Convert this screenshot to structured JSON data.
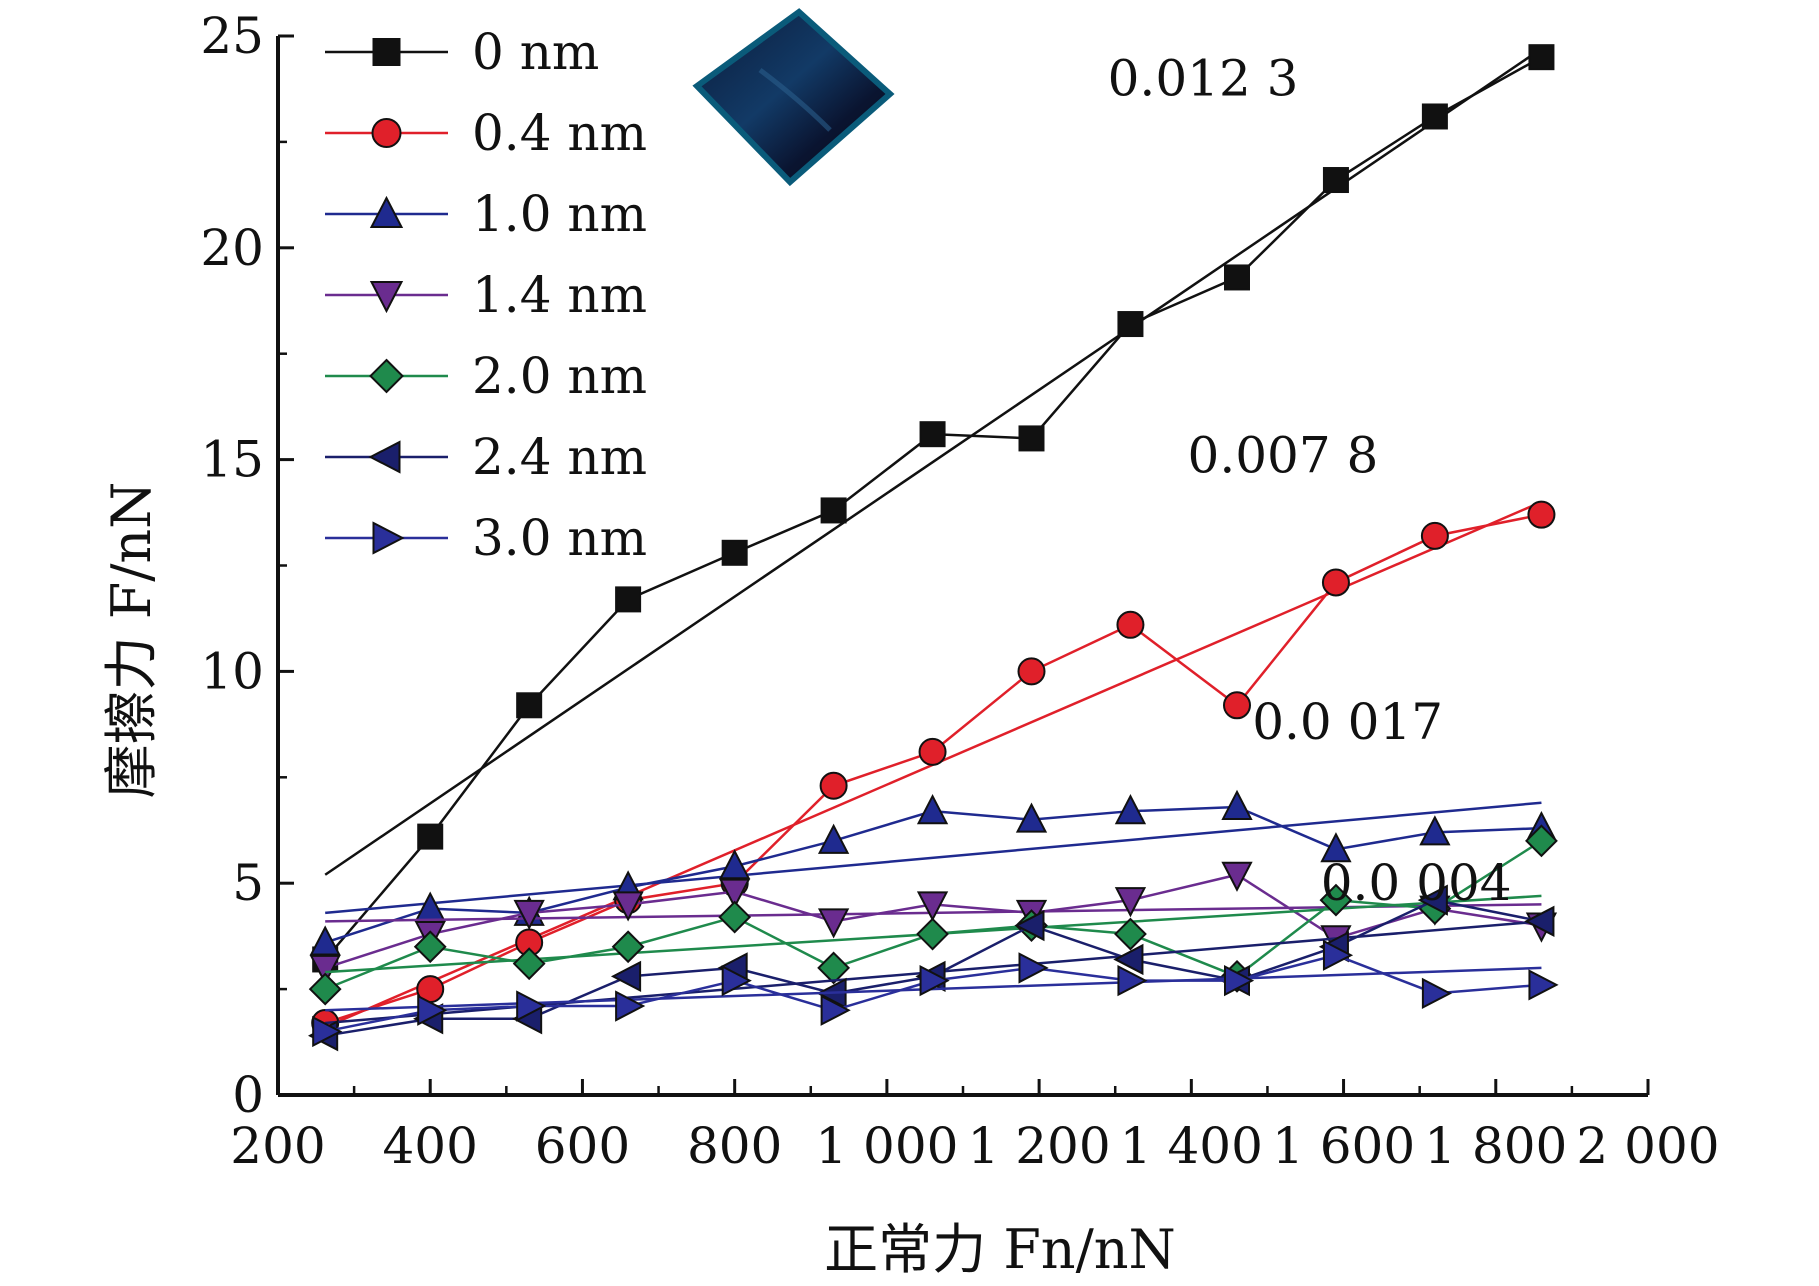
{
  "chart_data": {
    "type": "line",
    "xlabel": "正常力 Fn/nN",
    "ylabel": "摩擦力 F/nN",
    "xlim": [
      200,
      2000
    ],
    "ylim": [
      0,
      25
    ],
    "x_ticks": [
      200,
      400,
      600,
      800,
      1000,
      1200,
      1400,
      1600,
      1800,
      2000
    ],
    "x_tick_labels": [
      "200",
      "400",
      "600",
      "800",
      "1 000",
      "1 200",
      "1 400",
      "1 600",
      "1 800",
      "2 000"
    ],
    "x_tick_labels_printed": "200 400 600 800 1 0001 2001 4001 6001 800 2 000",
    "y_ticks": [
      0,
      5,
      10,
      15,
      20,
      25
    ],
    "y_tick_labels": [
      "0",
      "5",
      "10",
      "15",
      "20",
      "25"
    ],
    "legend_position": "top-left",
    "grid": false,
    "series": [
      {
        "name": "0 nm",
        "color": "#111111",
        "marker": "square",
        "x": [
          262,
          400,
          530,
          660,
          800,
          930,
          1060,
          1190,
          1320,
          1460,
          1590,
          1720,
          1860
        ],
        "y": [
          3.2,
          6.1,
          9.2,
          11.7,
          12.8,
          13.8,
          15.6,
          15.5,
          18.2,
          19.3,
          21.6,
          23.1,
          24.5
        ],
        "fit": {
          "x": [
            262,
            1860
          ],
          "y": [
            5.2,
            24.7
          ]
        }
      },
      {
        "name": "0.4 nm",
        "color": "#e0202a",
        "marker": "circle",
        "x": [
          262,
          400,
          530,
          660,
          800,
          930,
          1060,
          1190,
          1320,
          1460,
          1590,
          1720,
          1860
        ],
        "y": [
          1.7,
          2.5,
          3.6,
          4.6,
          5.0,
          7.3,
          8.1,
          10.0,
          11.1,
          9.2,
          12.1,
          13.2,
          13.7
        ],
        "fit": {
          "x": [
            262,
            1860
          ],
          "y": [
            1.6,
            14.0
          ]
        }
      },
      {
        "name": "1.0 nm",
        "color": "#1f2a8f",
        "marker": "triangle-up",
        "x": [
          262,
          400,
          530,
          660,
          800,
          930,
          1060,
          1190,
          1320,
          1460,
          1590,
          1720,
          1860
        ],
        "y": [
          3.6,
          4.4,
          4.3,
          4.9,
          5.4,
          6.0,
          6.7,
          6.5,
          6.7,
          6.8,
          5.8,
          6.2,
          6.3
        ],
        "fit": {
          "x": [
            262,
            1860
          ],
          "y": [
            4.3,
            6.9
          ]
        }
      },
      {
        "name": "1.4 nm",
        "color": "#6a2c8f",
        "marker": "triangle-down",
        "x": [
          262,
          400,
          530,
          660,
          800,
          930,
          1060,
          1190,
          1320,
          1460,
          1590,
          1720,
          1860
        ],
        "y": [
          3.0,
          3.8,
          4.3,
          4.5,
          4.8,
          4.1,
          4.5,
          4.3,
          4.6,
          5.2,
          3.7,
          4.4,
          4.0
        ],
        "fit": {
          "x": [
            262,
            1860
          ],
          "y": [
            4.1,
            4.5
          ]
        }
      },
      {
        "name": "2.0 nm",
        "color": "#1f8a4c",
        "marker": "diamond",
        "x": [
          262,
          400,
          530,
          660,
          800,
          930,
          1060,
          1190,
          1320,
          1460,
          1590,
          1720,
          1860
        ],
        "y": [
          2.5,
          3.5,
          3.1,
          3.5,
          4.2,
          3.0,
          3.8,
          4.0,
          3.8,
          2.8,
          4.6,
          4.4,
          6.0
        ],
        "fit": {
          "x": [
            262,
            1860
          ],
          "y": [
            2.9,
            4.7
          ]
        }
      },
      {
        "name": "2.4 nm",
        "color": "#1a1f6b",
        "marker": "triangle-left",
        "x": [
          262,
          400,
          530,
          660,
          800,
          930,
          1060,
          1190,
          1320,
          1460,
          1590,
          1720,
          1860
        ],
        "y": [
          1.4,
          1.8,
          1.8,
          2.8,
          3.0,
          2.4,
          2.8,
          4.0,
          3.2,
          2.7,
          3.5,
          4.6,
          4.1
        ],
        "fit": {
          "x": [
            262,
            1860
          ],
          "y": [
            1.7,
            4.1
          ]
        }
      },
      {
        "name": "3.0 nm",
        "color": "#2a2f9a",
        "marker": "triangle-right",
        "x": [
          262,
          400,
          530,
          660,
          800,
          930,
          1060,
          1190,
          1320,
          1460,
          1590,
          1720,
          1860
        ],
        "y": [
          1.5,
          2.0,
          2.1,
          2.1,
          2.7,
          2.0,
          2.7,
          3.0,
          2.7,
          2.7,
          3.3,
          2.4,
          2.6
        ],
        "fit": {
          "x": [
            262,
            1860
          ],
          "y": [
            2.0,
            3.0
          ]
        }
      }
    ],
    "annotations": [
      {
        "text": "0.012 3",
        "x": 1290,
        "y": 24.0
      },
      {
        "text": "0.007 8",
        "x": 1395,
        "y": 15.1
      },
      {
        "text": "0.0 017",
        "x": 1480,
        "y": 8.8
      },
      {
        "text": "0.0 004",
        "x": 1570,
        "y": 5.0
      }
    ]
  }
}
